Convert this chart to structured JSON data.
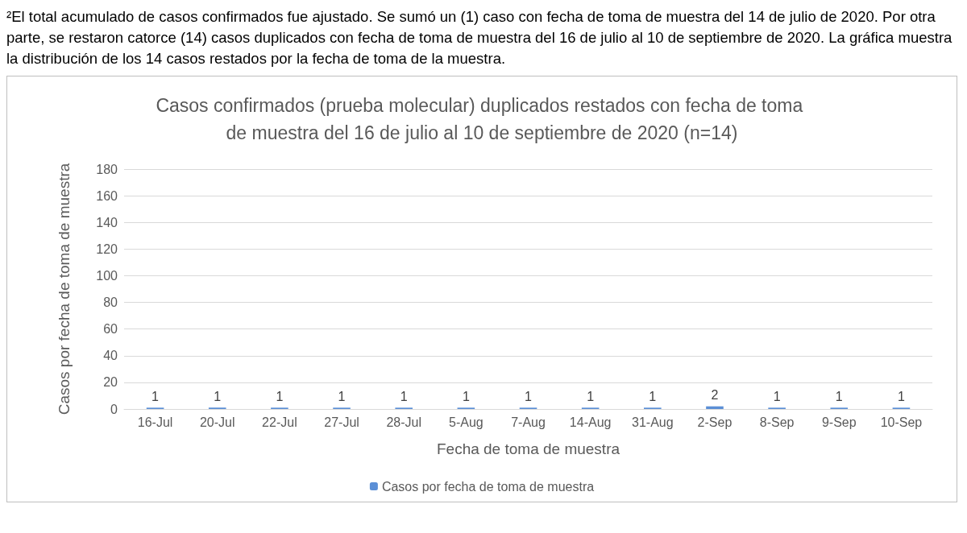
{
  "chart_data": {
    "type": "bar",
    "title": "Casos confirmados (prueba molecular) duplicados restados con fecha de toma de muestra del 16 de julio al 10 de septiembre de 2020 (n=14)",
    "annotations": [
      "²El total acumulado de casos confirmados fue ajustado. Se sumó un (1) caso con fecha de toma de muestra del 14 de julio de 2020. Por otra parte, se restaron catorce (14) casos duplicados con fecha de toma de muestra del 16 de julio al 10 de septiembre de 2020. La gráfica muestra la distribución de los 14 casos restados por la fecha de toma de la muestra."
    ],
    "xlabel": "Fecha de toma de muestra",
    "ylabel": "Casos por fecha de toma de muestra",
    "categories": [
      "16-Jul",
      "20-Jul",
      "22-Jul",
      "27-Jul",
      "28-Jul",
      "5-Aug",
      "7-Aug",
      "14-Aug",
      "31-Aug",
      "2-Sep",
      "8-Sep",
      "9-Sep",
      "10-Sep"
    ],
    "series": [
      {
        "name": "Casos por fecha de toma de muestra",
        "color": "#5b8fd6",
        "values": [
          1,
          1,
          1,
          1,
          1,
          1,
          1,
          1,
          1,
          2,
          1,
          1,
          1
        ]
      }
    ],
    "ylim": [
      0,
      180
    ],
    "yticks": [
      0,
      20,
      40,
      60,
      80,
      100,
      120,
      140,
      160,
      180
    ],
    "grid": "y",
    "legend": "bottom",
    "data_labels": true
  }
}
